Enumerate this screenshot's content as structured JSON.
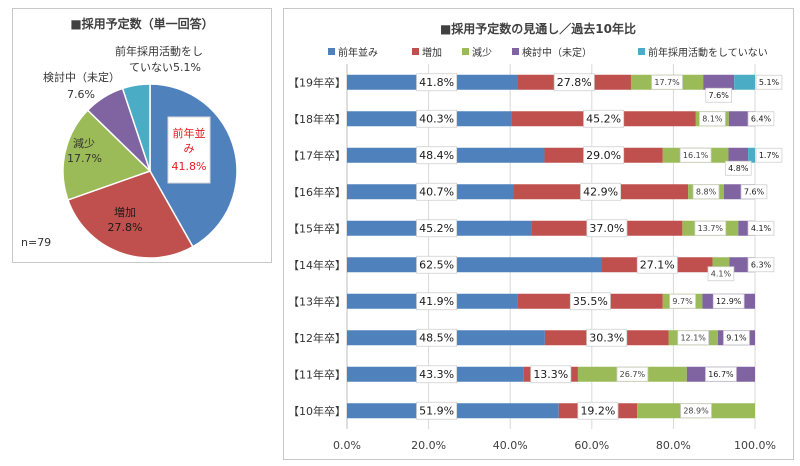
{
  "colors": {
    "same": "#4f81bd",
    "increase": "#c0504d",
    "decrease": "#9bbb59",
    "considering": "#8064a2",
    "none": "#4bacc6"
  },
  "chart_data": [
    {
      "type": "pie",
      "title": "■採用予定数（単一回答）",
      "note": "n=79",
      "slices": [
        {
          "label": "前年並み",
          "value": 41.8,
          "value_label": "41.8%",
          "color": "#4f81bd"
        },
        {
          "label": "増加",
          "value": 27.8,
          "value_label": "27.8%",
          "color": "#c0504d"
        },
        {
          "label": "減少",
          "value": 17.7,
          "value_label": "17.7%",
          "color": "#9bbb59"
        },
        {
          "label": "検討中（未定）",
          "value": 7.6,
          "value_label": "7.6%",
          "color": "#8064a2"
        },
        {
          "label": "前年採用活動をしていない",
          "value": 5.1,
          "value_label": "5.1%",
          "color": "#4bacc6"
        }
      ]
    },
    {
      "type": "bar",
      "stacked": true,
      "orientation": "horizontal",
      "title": "■採用予定数の見通し／過去10年比",
      "legend_position": "top",
      "xlim": [
        0,
        100
      ],
      "x_ticks": [
        "0.0%",
        "20.0%",
        "40.0%",
        "60.0%",
        "80.0%",
        "100.0%"
      ],
      "categories": [
        "【19年卒】",
        "【18年卒】",
        "【17年卒】",
        "【16年卒】",
        "【15年卒】",
        "【14年卒】",
        "【13年卒】",
        "【12年卒】",
        "【11年卒】",
        "【10年卒】"
      ],
      "series": [
        {
          "name": "前年並み",
          "color": "#4f81bd",
          "values": [
            41.8,
            40.3,
            48.4,
            40.7,
            45.2,
            62.5,
            41.9,
            48.5,
            43.3,
            51.9
          ],
          "labels": [
            "41.8%",
            "40.3%",
            "48.4%",
            "40.7%",
            "45.2%",
            "62.5%",
            "41.9%",
            "48.5%",
            "43.3%",
            "51.9%"
          ]
        },
        {
          "name": "増加",
          "color": "#c0504d",
          "values": [
            27.8,
            45.2,
            29.0,
            42.9,
            37.0,
            27.1,
            35.5,
            30.3,
            13.3,
            19.2
          ],
          "labels": [
            "27.8%",
            "45.2%",
            "29.0%",
            "42.9%",
            "37.0%",
            "27.1%",
            "35.5%",
            "30.3%",
            "13.3%",
            "19.2%"
          ]
        },
        {
          "name": "減少",
          "color": "#9bbb59",
          "values": [
            17.7,
            8.1,
            16.1,
            8.8,
            13.7,
            4.1,
            9.7,
            12.1,
            26.7,
            28.9
          ],
          "labels": [
            "17.7%",
            "8.1%",
            "16.1%",
            "8.8%",
            "13.7%",
            "4.1%",
            "9.7%",
            "12.1%",
            "26.7%",
            "28.9%"
          ]
        },
        {
          "name": "検討中（未定）",
          "color": "#8064a2",
          "values": [
            7.6,
            6.4,
            4.8,
            7.6,
            4.1,
            6.3,
            12.9,
            9.1,
            16.7,
            0
          ],
          "labels": [
            "7.6%",
            "6.4%",
            "4.8%",
            "7.6%",
            "4.1%",
            "6.3%",
            "12.9%",
            "9.1%",
            "16.7%",
            ""
          ]
        },
        {
          "name": "前年採用活動をしていない",
          "color": "#4bacc6",
          "values": [
            5.1,
            0,
            1.7,
            0,
            0,
            0,
            0,
            0,
            0,
            0
          ],
          "labels": [
            "5.1%",
            "",
            "1.7%",
            "",
            "",
            "",
            "",
            "",
            "",
            ""
          ]
        }
      ]
    }
  ]
}
